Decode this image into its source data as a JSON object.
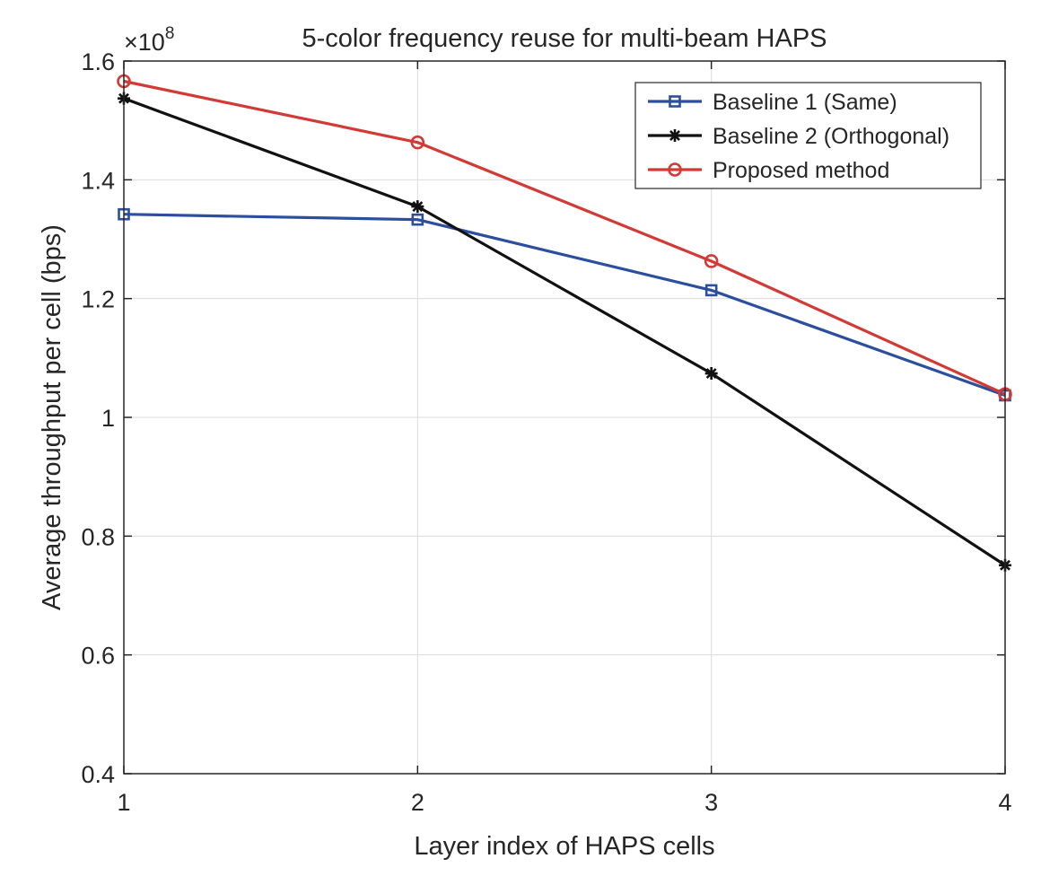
{
  "chart_data": {
    "type": "line",
    "title": "5-color frequency reuse for multi-beam HAPS",
    "xlabel": "Layer index of HAPS cells",
    "ylabel": "Average throughput per cell (bps)",
    "y_exponent_label": "×10",
    "y_exponent_power": "8",
    "x": [
      1,
      2,
      3,
      4
    ],
    "xlim": [
      1,
      4
    ],
    "ylim": [
      0.4,
      1.6
    ],
    "y_scale_factor": 100000000,
    "xticks": [
      "1",
      "2",
      "3",
      "4"
    ],
    "yticks": [
      "0.4",
      "0.6",
      "0.8",
      "1",
      "1.2",
      "1.4",
      "1.6"
    ],
    "grid": true,
    "legend_position": "top-right",
    "series": [
      {
        "name": "Baseline 1 (Same)",
        "color": "#2b4f9e",
        "marker": "square",
        "values": [
          1.342,
          1.333,
          1.214,
          1.037
        ]
      },
      {
        "name": "Baseline 2 (Orthogonal)",
        "color": "#111111",
        "marker": "asterisk",
        "values": [
          1.537,
          1.355,
          1.074,
          0.751
        ]
      },
      {
        "name": "Proposed method",
        "color": "#d23a36",
        "marker": "circle",
        "values": [
          1.566,
          1.463,
          1.263,
          1.039
        ]
      }
    ]
  }
}
